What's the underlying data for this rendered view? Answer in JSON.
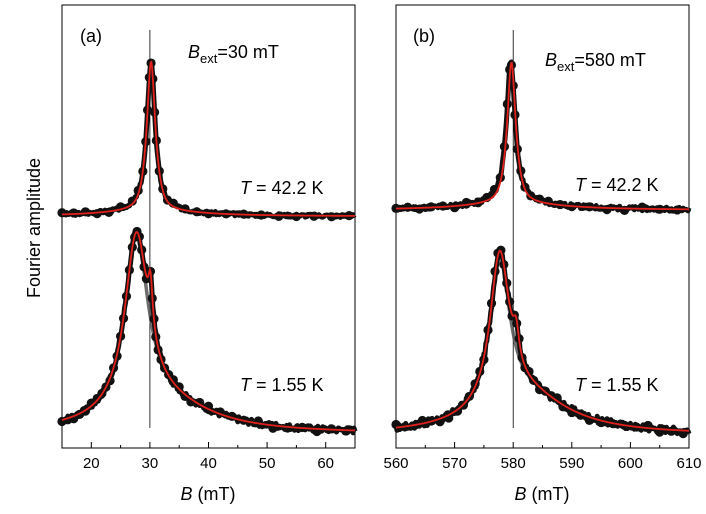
{
  "ylabel": "Fourier amplitude",
  "chart_data": [
    {
      "type": "line",
      "panel_label": "(a)",
      "field_label": {
        "symbol": "B",
        "subscript": "ext",
        "value": "=30 mT"
      },
      "xlabel": {
        "symbol": "B",
        "unit": " (mT)"
      },
      "xlim": [
        15,
        65
      ],
      "xticks": [
        20,
        30,
        40,
        50,
        60
      ],
      "ylim": [
        0,
        1
      ],
      "reference_line_x": 30,
      "colors": {
        "data": "#111111",
        "fit": "#e0201b",
        "component": "#555555"
      },
      "series": [
        {
          "temperature_label": {
            "symbol": "T",
            "value": " = 42.2 K"
          },
          "baseline": 0.53,
          "noise": 0.004,
          "noise_seed": 3,
          "peaks": [
            {
              "center": 30.2,
              "width": 0.85,
              "amplitude": 0.355
            }
          ],
          "tail": {
            "amplitude": 0.012,
            "center": 30,
            "width": 10
          },
          "x": [
            15,
            17,
            19,
            21,
            23,
            25,
            27,
            28,
            28.8,
            29.3,
            29.6,
            29.9,
            30.2,
            30.5,
            30.8,
            31.1,
            31.6,
            32.2,
            33,
            34,
            36,
            38,
            40,
            43,
            46,
            49,
            52,
            55,
            58,
            61,
            64
          ],
          "fit": {
            "center": 30.2,
            "width": 0.8,
            "amplitude": 0.355,
            "lorentz_fraction": 0.85
          }
        },
        {
          "temperature_label": {
            "symbol": "T",
            "value": " = 1.55 K"
          },
          "baseline": 0.015,
          "noise": 0.007,
          "noise_seed": 7,
          "peaks": [
            {
              "center": 27.7,
              "width": 2.4,
              "amplitude": 0.415
            },
            {
              "center": 30.1,
              "width": 0.45,
              "amplitude": 0.11
            }
          ],
          "tail": {
            "amplitude": 0.07,
            "center": 32,
            "width": 10
          },
          "x": [
            15,
            16,
            17,
            18,
            19,
            20,
            21,
            21.8,
            22.5,
            23.2,
            23.8,
            24.4,
            25,
            25.5,
            26,
            26.5,
            27,
            27.4,
            27.8,
            28.2,
            28.6,
            29,
            29.4,
            29.8,
            30.1,
            30.4,
            30.7,
            31,
            31.4,
            31.9,
            32.5,
            33.2,
            34,
            35,
            36,
            37,
            38.5,
            40,
            42,
            44,
            46,
            48.5,
            51,
            53.5,
            56,
            58.5,
            61,
            63.5
          ],
          "fit": {
            "peaks": [
              {
                "center": 27.7,
                "width": 2.4,
                "amplitude": 0.415
              },
              {
                "center": 30.1,
                "width": 0.45,
                "amplitude": 0.11
              }
            ],
            "tail": {
              "amplitude": 0.07,
              "center": 32,
              "width": 10
            }
          }
        }
      ]
    },
    {
      "type": "line",
      "panel_label": "(b)",
      "field_label": {
        "symbol": "B",
        "subscript": "ext",
        "value": "=580 mT"
      },
      "xlabel": {
        "symbol": "B",
        "unit": " (mT)"
      },
      "xlim": [
        560,
        610
      ],
      "xticks": [
        560,
        570,
        580,
        590,
        600,
        610
      ],
      "ylim": [
        0,
        1
      ],
      "reference_line_x": 580,
      "colors": {
        "data": "#111111",
        "fit": "#e0201b",
        "component": "#555555"
      },
      "series": [
        {
          "temperature_label": {
            "symbol": "T",
            "value": " = 42.2 K"
          },
          "baseline": 0.545,
          "noise": 0.005,
          "noise_seed": 11,
          "peaks": [
            {
              "center": 579.6,
              "width": 0.9,
              "amplitude": 0.335
            }
          ],
          "tail": {
            "amplitude": 0.015,
            "center": 580,
            "width": 10
          },
          "x": [
            560,
            562,
            564,
            566,
            568,
            570,
            572,
            574,
            575.5,
            576.8,
            577.8,
            578.5,
            579,
            579.4,
            579.7,
            580,
            580.3,
            580.7,
            581.3,
            582,
            583,
            584.5,
            586,
            588,
            590,
            593,
            596,
            599,
            602,
            605,
            608
          ],
          "fit": {
            "center": 579.7,
            "width": 0.8,
            "amplitude": 0.335,
            "lorentz_fraction": 0.85
          }
        },
        {
          "temperature_label": {
            "symbol": "T",
            "value": " = 1.55 K"
          },
          "baseline": 0.012,
          "noise": 0.008,
          "noise_seed": 17,
          "peaks": [
            {
              "center": 577.7,
              "width": 2.0,
              "amplitude": 0.36
            },
            {
              "center": 580.5,
              "width": 0.6,
              "amplitude": 0.07
            }
          ],
          "tail": {
            "amplitude": 0.09,
            "center": 582,
            "width": 9
          },
          "x": [
            560,
            561.5,
            563,
            564.5,
            566,
            567.5,
            569,
            570.5,
            571.5,
            572.5,
            573.5,
            574.3,
            575,
            575.7,
            576.3,
            576.9,
            577.4,
            577.9,
            578.4,
            578.9,
            579.4,
            579.8,
            580.2,
            580.6,
            581,
            581.5,
            582,
            582.7,
            583.5,
            584.5,
            585.5,
            586.5,
            587.5,
            588.5,
            590,
            591.5,
            593,
            595,
            597,
            599,
            601,
            603,
            605,
            607,
            609
          ],
          "fit": {
            "peaks": [
              {
                "center": 577.7,
                "width": 2.0,
                "amplitude": 0.36
              },
              {
                "center": 580.5,
                "width": 0.6,
                "amplitude": 0.07
              }
            ],
            "tail": {
              "amplitude": 0.09,
              "center": 582,
              "width": 9
            }
          }
        }
      ]
    }
  ]
}
